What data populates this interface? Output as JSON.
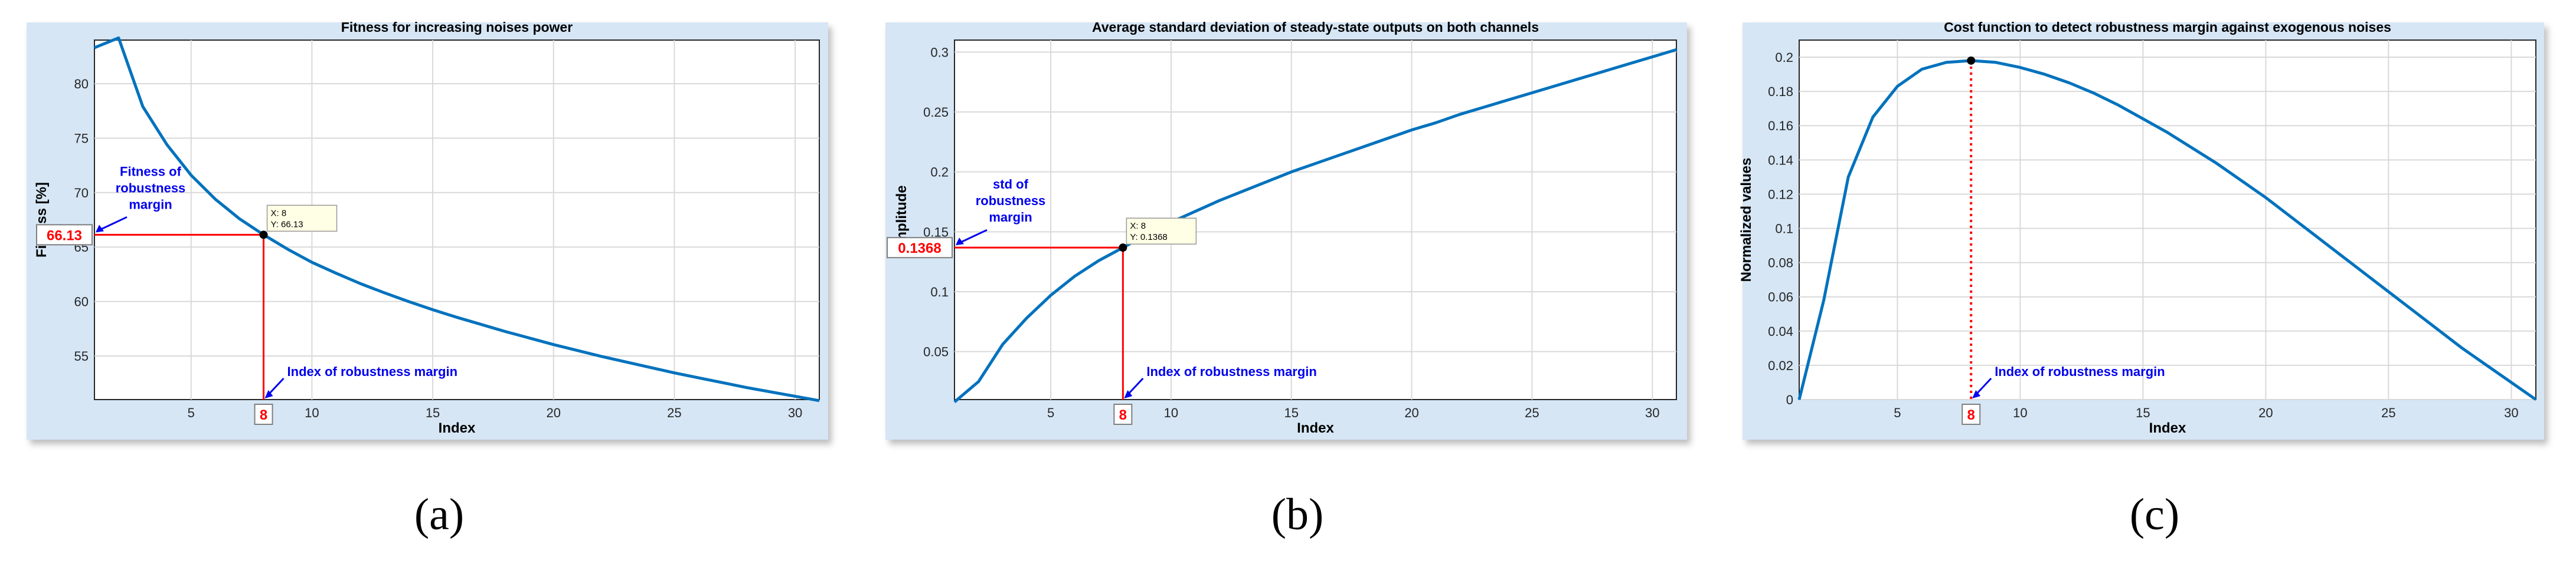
{
  "colors": {
    "line": "#0072bd",
    "marker": "#ff0000",
    "annotation": "#0000ee",
    "grid": "#d9d9d9",
    "frame": "#d6e6f5"
  },
  "panels": [
    {
      "caption": "(a)",
      "chart_data": {
        "type": "line",
        "title": "Fitness for increasing noises power",
        "xlabel": "Index",
        "ylabel": "Fitness [%]",
        "xlim": [
          1,
          31
        ],
        "ylim": [
          51,
          84
        ],
        "xticks": [
          5,
          10,
          15,
          20,
          25,
          30
        ],
        "yticks": [
          55,
          60,
          65,
          70,
          75,
          80
        ],
        "x": [
          1,
          2,
          3,
          4,
          5,
          6,
          7,
          8,
          9,
          10,
          11,
          12,
          13,
          14,
          15,
          16,
          17,
          18,
          19,
          20,
          21,
          22,
          23,
          24,
          25,
          26,
          27,
          28,
          29,
          30,
          31
        ],
        "y": [
          83.3,
          84.2,
          77.9,
          74.4,
          71.6,
          69.4,
          67.6,
          66.13,
          64.8,
          63.6,
          62.6,
          61.65,
          60.8,
          60.0,
          59.25,
          58.55,
          57.9,
          57.25,
          56.65,
          56.05,
          55.5,
          54.95,
          54.45,
          53.95,
          53.45,
          53.0,
          52.55,
          52.1,
          51.7,
          51.3,
          50.9
        ],
        "grid": true,
        "marker_point": {
          "x": 8,
          "y": 66.13
        },
        "datatip": {
          "x_text": "X: 8",
          "y_text": "Y: 66.13"
        },
        "y_value_label": "66.13",
        "x_index_label": "8",
        "annotation_value": [
          "Fitness of",
          "robustness",
          "margin"
        ],
        "annotation_index": "Index of robustness margin",
        "drop_style": "solid"
      }
    },
    {
      "caption": "(b)",
      "chart_data": {
        "type": "line",
        "title": "Average standard deviation of steady-state outputs on both channels",
        "xlabel": "Index",
        "ylabel": "Amplitude",
        "xlim": [
          1,
          31
        ],
        "ylim": [
          0.01,
          0.31
        ],
        "xticks": [
          5,
          10,
          15,
          20,
          25,
          30
        ],
        "yticks": [
          0.05,
          0.1,
          0.15,
          0.2,
          0.25,
          0.3
        ],
        "x": [
          1,
          2,
          3,
          4,
          5,
          6,
          7,
          8,
          9,
          10,
          11,
          12,
          13,
          14,
          15,
          16,
          17,
          18,
          19,
          20,
          21,
          22,
          23,
          24,
          25,
          26,
          27,
          28,
          29,
          30,
          31
        ],
        "y": [
          0.008,
          0.025,
          0.056,
          0.078,
          0.097,
          0.113,
          0.126,
          0.1368,
          0.148,
          0.158,
          0.167,
          0.176,
          0.184,
          0.192,
          0.2,
          0.207,
          0.214,
          0.221,
          0.228,
          0.235,
          0.241,
          0.248,
          0.254,
          0.26,
          0.266,
          0.272,
          0.278,
          0.284,
          0.29,
          0.296,
          0.302
        ],
        "grid": true,
        "marker_point": {
          "x": 8,
          "y": 0.1368
        },
        "datatip": {
          "x_text": "X: 8",
          "y_text": "Y: 0.1368"
        },
        "y_value_label": "0.1368",
        "x_index_label": "8",
        "annotation_value": [
          "std of",
          "robustness",
          "margin"
        ],
        "annotation_index": "Index of robustness margin",
        "drop_style": "solid"
      }
    },
    {
      "caption": "(c)",
      "chart_data": {
        "type": "line",
        "title": "Cost function to detect robustness margin against exogenous noises",
        "xlabel": "Index",
        "ylabel": "Normalized values",
        "xlim": [
          1,
          31
        ],
        "ylim": [
          0,
          0.21
        ],
        "xticks": [
          5,
          10,
          15,
          20,
          25,
          30
        ],
        "yticks": [
          0,
          0.02,
          0.04,
          0.06,
          0.08,
          0.1,
          0.12,
          0.14,
          0.16,
          0.18,
          0.2
        ],
        "x": [
          1,
          2,
          3,
          4,
          5,
          6,
          7,
          8,
          9,
          10,
          11,
          12,
          13,
          14,
          15,
          16,
          17,
          18,
          19,
          20,
          21,
          22,
          23,
          24,
          25,
          26,
          27,
          28,
          29,
          30,
          31
        ],
        "y": [
          0,
          0.058,
          0.13,
          0.165,
          0.183,
          0.193,
          0.197,
          0.198,
          0.197,
          0.194,
          0.19,
          0.185,
          0.179,
          0.172,
          0.164,
          0.156,
          0.147,
          0.138,
          0.128,
          0.118,
          0.107,
          0.096,
          0.085,
          0.074,
          0.063,
          0.052,
          0.041,
          0.03,
          0.02,
          0.01,
          0.0
        ],
        "grid": true,
        "marker_point": {
          "x": 8,
          "y": 0.198
        },
        "x_index_label": "8",
        "annotation_index": "Index of robustness margin",
        "drop_style": "dotted"
      }
    }
  ]
}
